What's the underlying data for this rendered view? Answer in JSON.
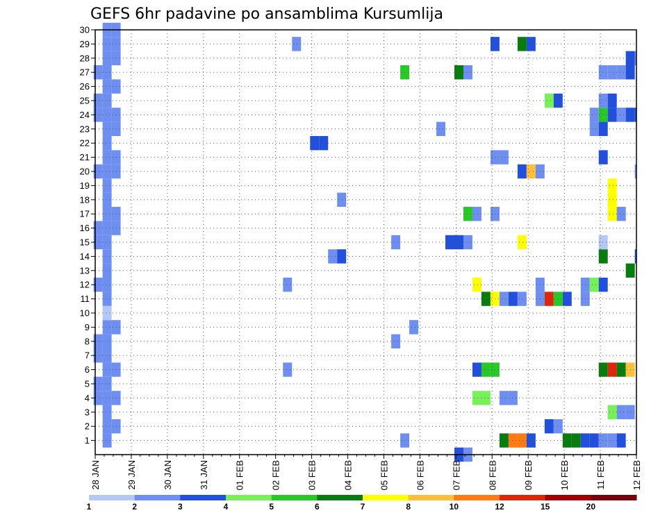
{
  "chart_data": {
    "type": "heatmap",
    "title": "GEFS 6hr padavine po ansamblima Kursumlija",
    "xlabel": "",
    "ylabel": "",
    "x_ticks": [
      "28 JAN",
      "29 JAN",
      "30 JAN",
      "31 JAN",
      "01 FEB",
      "02 FEB",
      "03 FEB",
      "04 FEB",
      "05 FEB",
      "06 FEB",
      "07 FEB",
      "08 FEB",
      "09 FEB",
      "10 FEB",
      "11 FEB",
      "12 FEB"
    ],
    "y_ticks": [
      "1",
      "2",
      "3",
      "4",
      "5",
      "6",
      "7",
      "8",
      "9",
      "10",
      "11",
      "12",
      "13",
      "14",
      "15",
      "16",
      "17",
      "18",
      "19",
      "20",
      "21",
      "22",
      "23",
      "24",
      "25",
      "26",
      "27",
      "28",
      "29",
      "30"
    ],
    "xlim": [
      0,
      15
    ],
    "ylim": [
      0,
      30
    ],
    "time_step": "6hr",
    "grid": "dotted",
    "colorbar": {
      "levels": [
        "1",
        "2",
        "3",
        "4",
        "5",
        "6",
        "7",
        "8",
        "10",
        "12",
        "15",
        "20"
      ],
      "colors": [
        "#b4c8f5",
        "#6e8ef0",
        "#2050dc",
        "#78f05a",
        "#28c828",
        "#087c0e",
        "#ffff00",
        "#ffbe3c",
        "#ff7a10",
        "#dc280a",
        "#a00000",
        "#780008"
      ]
    },
    "cells": [
      {
        "t": 0.33,
        "m": 1,
        "c": 1
      },
      {
        "t": 0.33,
        "m": 2,
        "c": 1
      },
      {
        "t": 0.33,
        "m": 3,
        "c": 1
      },
      {
        "t": 0.33,
        "m": 4,
        "c": 1
      },
      {
        "t": 0.33,
        "m": 5,
        "c": 1
      },
      {
        "t": 0.33,
        "m": 6,
        "c": 1
      },
      {
        "t": 0.33,
        "m": 7,
        "c": 1
      },
      {
        "t": 0.33,
        "m": 8,
        "c": 1
      },
      {
        "t": 0.33,
        "m": 9,
        "c": 1
      },
      {
        "t": 0.33,
        "m": 11,
        "c": 1
      },
      {
        "t": 0.33,
        "m": 12,
        "c": 1
      },
      {
        "t": 0.33,
        "m": 13,
        "c": 1
      },
      {
        "t": 0.33,
        "m": 14,
        "c": 1
      },
      {
        "t": 0.33,
        "m": 15,
        "c": 1
      },
      {
        "t": 0.33,
        "m": 16,
        "c": 1
      },
      {
        "t": 0.33,
        "m": 17,
        "c": 1
      },
      {
        "t": 0.33,
        "m": 18,
        "c": 1
      },
      {
        "t": 0.33,
        "m": 19,
        "c": 1
      },
      {
        "t": 0.33,
        "m": 20,
        "c": 1
      },
      {
        "t": 0.33,
        "m": 21,
        "c": 1
      },
      {
        "t": 0.33,
        "m": 22,
        "c": 1
      },
      {
        "t": 0.33,
        "m": 23,
        "c": 1
      },
      {
        "t": 0.33,
        "m": 24,
        "c": 1
      },
      {
        "t": 0.33,
        "m": 25,
        "c": 1
      },
      {
        "t": 0.33,
        "m": 26,
        "c": 1
      },
      {
        "t": 0.33,
        "m": 27,
        "c": 1
      },
      {
        "t": 0.33,
        "m": 28,
        "c": 1
      },
      {
        "t": 0.33,
        "m": 29,
        "c": 1
      },
      {
        "t": 0.33,
        "m": 30,
        "c": 1
      },
      {
        "t": 0.58,
        "m": 2,
        "c": 1
      },
      {
        "t": 0.58,
        "m": 4,
        "c": 1
      },
      {
        "t": 0.58,
        "m": 6,
        "c": 1
      },
      {
        "t": 0.58,
        "m": 9,
        "c": 1
      },
      {
        "t": 0.58,
        "m": 16,
        "c": 1
      },
      {
        "t": 0.58,
        "m": 17,
        "c": 1
      },
      {
        "t": 0.58,
        "m": 20,
        "c": 1
      },
      {
        "t": 0.58,
        "m": 21,
        "c": 1
      },
      {
        "t": 0.58,
        "m": 23,
        "c": 1
      },
      {
        "t": 0.58,
        "m": 24,
        "c": 1
      },
      {
        "t": 0.58,
        "m": 26,
        "c": 1
      },
      {
        "t": 0.58,
        "m": 28,
        "c": 1
      },
      {
        "t": 0.58,
        "m": 29,
        "c": 1
      },
      {
        "t": 0.58,
        "m": 30,
        "c": 1
      },
      {
        "t": 0.33,
        "m": 10,
        "c": 0
      },
      {
        "t": 0.08,
        "m": 4,
        "c": 1
      },
      {
        "t": 0.08,
        "m": 5,
        "c": 1
      },
      {
        "t": 0.08,
        "m": 7,
        "c": 1
      },
      {
        "t": 0.08,
        "m": 8,
        "c": 1
      },
      {
        "t": 0.08,
        "m": 12,
        "c": 1
      },
      {
        "t": 0.08,
        "m": 15,
        "c": 1
      },
      {
        "t": 0.08,
        "m": 16,
        "c": 1
      },
      {
        "t": 0.08,
        "m": 20,
        "c": 1
      },
      {
        "t": 0.08,
        "m": 24,
        "c": 1
      },
      {
        "t": 0.08,
        "m": 25,
        "c": 1
      },
      {
        "t": 0.08,
        "m": 27,
        "c": 1
      },
      {
        "t": 5.58,
        "m": 29,
        "c": 1
      },
      {
        "t": 6.08,
        "m": 22,
        "c": 2
      },
      {
        "t": 6.33,
        "m": 22,
        "c": 2
      },
      {
        "t": 5.33,
        "m": 6,
        "c": 1
      },
      {
        "t": 5.33,
        "m": 12,
        "c": 1
      },
      {
        "t": 6.58,
        "m": 14,
        "c": 1
      },
      {
        "t": 6.83,
        "m": 14,
        "c": 2
      },
      {
        "t": 6.83,
        "m": 18,
        "c": 1
      },
      {
        "t": 8.33,
        "m": 8,
        "c": 1
      },
      {
        "t": 8.33,
        "m": 15,
        "c": 1
      },
      {
        "t": 8.58,
        "m": 1,
        "c": 1
      },
      {
        "t": 8.58,
        "m": 27,
        "c": 4
      },
      {
        "t": 8.83,
        "m": 9,
        "c": 1
      },
      {
        "t": 9.58,
        "m": 23,
        "c": 1
      },
      {
        "t": 9.83,
        "m": 15,
        "c": 2
      },
      {
        "t": 10.08,
        "m": 15,
        "c": 2
      },
      {
        "t": 10.33,
        "m": 15,
        "c": 1
      },
      {
        "t": 10.08,
        "m": 0,
        "c": 2
      },
      {
        "t": 10.33,
        "m": 0,
        "c": 1
      },
      {
        "t": 10.08,
        "m": 27,
        "c": 5
      },
      {
        "t": 10.33,
        "m": 27,
        "c": 1
      },
      {
        "t": 10.33,
        "m": 17,
        "c": 4
      },
      {
        "t": 10.58,
        "m": 17,
        "c": 1
      },
      {
        "t": 10.58,
        "m": 6,
        "c": 2
      },
      {
        "t": 10.83,
        "m": 6,
        "c": 4
      },
      {
        "t": 11.08,
        "m": 6,
        "c": 4
      },
      {
        "t": 10.58,
        "m": 12,
        "c": 6
      },
      {
        "t": 10.58,
        "m": 4,
        "c": 3
      },
      {
        "t": 10.83,
        "m": 4,
        "c": 3
      },
      {
        "t": 10.83,
        "m": 11,
        "c": 5
      },
      {
        "t": 11.08,
        "m": 11,
        "c": 6
      },
      {
        "t": 11.33,
        "m": 11,
        "c": 1
      },
      {
        "t": 11.58,
        "m": 11,
        "c": 2
      },
      {
        "t": 11.83,
        "m": 11,
        "c": 1
      },
      {
        "t": 11.08,
        "m": 17,
        "c": 1
      },
      {
        "t": 11.08,
        "m": 21,
        "c": 1
      },
      {
        "t": 11.33,
        "m": 21,
        "c": 1
      },
      {
        "t": 11.08,
        "m": 29,
        "c": 2
      },
      {
        "t": 11.33,
        "m": 1,
        "c": 5
      },
      {
        "t": 11.58,
        "m": 1,
        "c": 8
      },
      {
        "t": 11.83,
        "m": 1,
        "c": 8
      },
      {
        "t": 12.08,
        "m": 1,
        "c": 2
      },
      {
        "t": 11.33,
        "m": 4,
        "c": 1
      },
      {
        "t": 11.58,
        "m": 4,
        "c": 1
      },
      {
        "t": 11.83,
        "m": 15,
        "c": 6
      },
      {
        "t": 11.83,
        "m": 20,
        "c": 2
      },
      {
        "t": 12.08,
        "m": 20,
        "c": 7
      },
      {
        "t": 12.33,
        "m": 20,
        "c": 1
      },
      {
        "t": 11.83,
        "m": 29,
        "c": 5
      },
      {
        "t": 12.08,
        "m": 29,
        "c": 2
      },
      {
        "t": 12.33,
        "m": 11,
        "c": 1
      },
      {
        "t": 12.33,
        "m": 12,
        "c": 1
      },
      {
        "t": 12.58,
        "m": 11,
        "c": 9
      },
      {
        "t": 12.83,
        "m": 11,
        "c": 4
      },
      {
        "t": 13.08,
        "m": 11,
        "c": 2
      },
      {
        "t": 12.58,
        "m": 2,
        "c": 2
      },
      {
        "t": 12.83,
        "m": 2,
        "c": 1
      },
      {
        "t": 12.58,
        "m": 25,
        "c": 3
      },
      {
        "t": 12.83,
        "m": 25,
        "c": 2
      },
      {
        "t": 13.08,
        "m": 1,
        "c": 5
      },
      {
        "t": 13.33,
        "m": 1,
        "c": 5
      },
      {
        "t": 13.58,
        "m": 1,
        "c": 2
      },
      {
        "t": 13.83,
        "m": 1,
        "c": 2
      },
      {
        "t": 14.08,
        "m": 1,
        "c": 1
      },
      {
        "t": 14.33,
        "m": 1,
        "c": 1
      },
      {
        "t": 14.58,
        "m": 1,
        "c": 2
      },
      {
        "t": 13.58,
        "m": 11,
        "c": 1
      },
      {
        "t": 13.58,
        "m": 12,
        "c": 1
      },
      {
        "t": 13.83,
        "m": 12,
        "c": 3
      },
      {
        "t": 14.08,
        "m": 12,
        "c": 2
      },
      {
        "t": 13.83,
        "m": 23,
        "c": 1
      },
      {
        "t": 13.83,
        "m": 24,
        "c": 1
      },
      {
        "t": 14.08,
        "m": 24,
        "c": 4
      },
      {
        "t": 14.33,
        "m": 24,
        "c": 2
      },
      {
        "t": 14.58,
        "m": 24,
        "c": 1
      },
      {
        "t": 14.83,
        "m": 24,
        "c": 2
      },
      {
        "t": 14.08,
        "m": 6,
        "c": 5
      },
      {
        "t": 14.33,
        "m": 6,
        "c": 9
      },
      {
        "t": 14.58,
        "m": 6,
        "c": 5
      },
      {
        "t": 14.83,
        "m": 6,
        "c": 7
      },
      {
        "t": 14.08,
        "m": 14,
        "c": 5
      },
      {
        "t": 14.08,
        "m": 15,
        "c": 0
      },
      {
        "t": 14.08,
        "m": 21,
        "c": 2
      },
      {
        "t": 14.08,
        "m": 23,
        "c": 2
      },
      {
        "t": 14.08,
        "m": 25,
        "c": 1
      },
      {
        "t": 14.33,
        "m": 25,
        "c": 2
      },
      {
        "t": 14.08,
        "m": 27,
        "c": 1
      },
      {
        "t": 14.33,
        "m": 27,
        "c": 1
      },
      {
        "t": 14.58,
        "m": 27,
        "c": 1
      },
      {
        "t": 14.83,
        "m": 27,
        "c": 2
      },
      {
        "t": 14.33,
        "m": 3,
        "c": 3
      },
      {
        "t": 14.33,
        "m": 17,
        "c": 6
      },
      {
        "t": 14.33,
        "m": 18,
        "c": 6
      },
      {
        "t": 14.33,
        "m": 19,
        "c": 6
      },
      {
        "t": 14.58,
        "m": 17,
        "c": 1
      },
      {
        "t": 14.58,
        "m": 3,
        "c": 1
      },
      {
        "t": 14.83,
        "m": 3,
        "c": 1
      },
      {
        "t": 14.83,
        "m": 13,
        "c": 5
      },
      {
        "t": 14.83,
        "m": 28,
        "c": 2
      },
      {
        "t": 15.08,
        "m": 28,
        "c": 1
      },
      {
        "t": 15.08,
        "m": 14,
        "c": 2
      },
      {
        "t": 15.08,
        "m": 20,
        "c": 1
      },
      {
        "t": 15.08,
        "m": 24,
        "c": 2
      }
    ]
  }
}
